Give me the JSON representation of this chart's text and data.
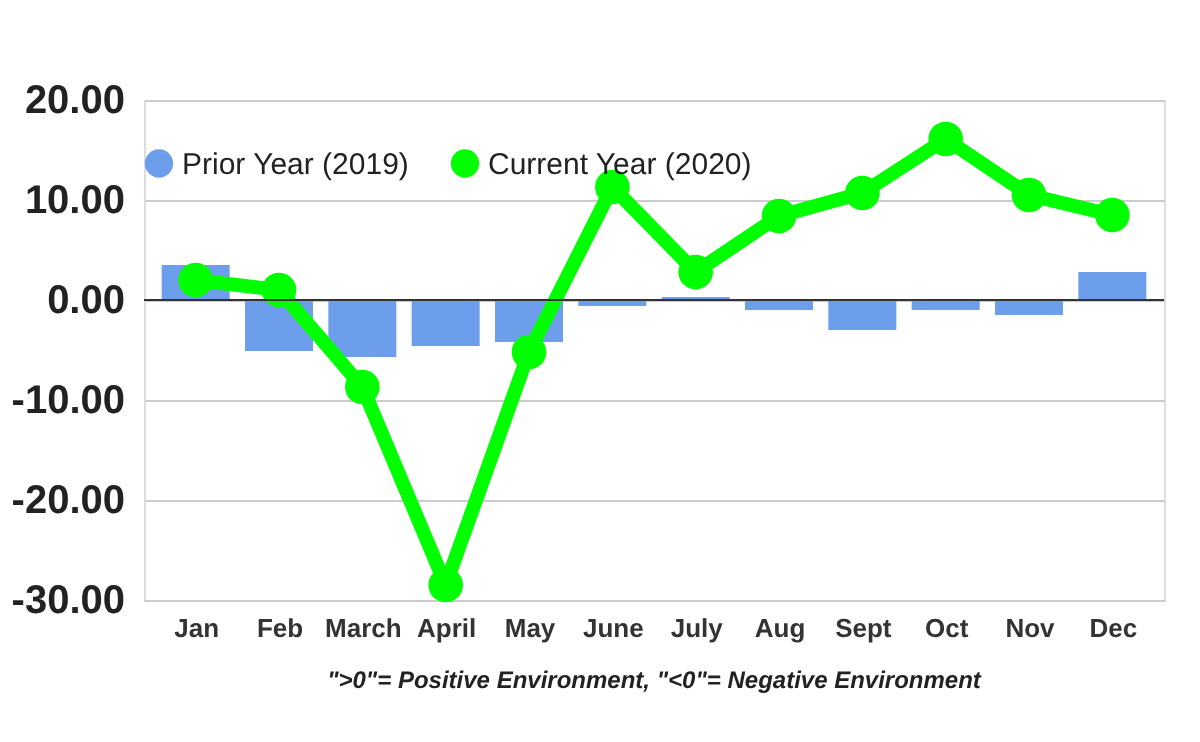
{
  "chart_data": {
    "type": "bar",
    "categories": [
      "Jan",
      "Feb",
      "March",
      "April",
      "May",
      "June",
      "July",
      "Aug",
      "Sept",
      "Oct",
      "Nov",
      "Dec"
    ],
    "series": [
      {
        "name": "Prior Year (2019)",
        "color": "#6d9eeb",
        "values": [
          3.5,
          -5.1,
          -5.7,
          -4.6,
          -4.2,
          -0.6,
          0.3,
          -1.0,
          -3.0,
          -1.0,
          -1.5,
          2.8
        ]
      },
      {
        "name": "Current Year (2020)",
        "type": "line",
        "color": "#00ff00",
        "marker": "circle",
        "values": [
          2.0,
          1.0,
          -8.7,
          -28.5,
          -5.2,
          11.3,
          2.8,
          8.4,
          10.7,
          16.1,
          10.5,
          8.5
        ]
      }
    ],
    "ylim": [
      -30,
      20
    ],
    "yticks": [
      {
        "value": -30,
        "label": "-30.00"
      },
      {
        "value": -20,
        "label": "-20.00"
      },
      {
        "value": -10,
        "label": "-10.00"
      },
      {
        "value": 0,
        "label": "0.00"
      },
      {
        "value": 10,
        "label": "10.00"
      },
      {
        "value": 20,
        "label": "20.00"
      }
    ],
    "ref_lines": [
      {
        "axis": "y",
        "value": 0,
        "color": "#333333"
      }
    ],
    "grid": "y",
    "legend": "top",
    "annotations": [
      "\">0\"= Positive Environment, \"<0\"= Negative Environment"
    ]
  }
}
